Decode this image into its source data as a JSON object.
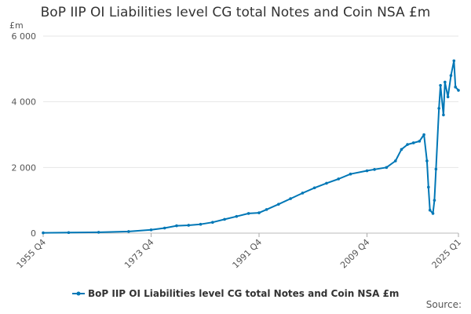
{
  "chart_data": {
    "type": "line",
    "title": "BoP IIP OI Liabilities level CG total Notes and Coin NSA £m",
    "ylabel": "£m",
    "xlabel": "",
    "ylim": [
      0,
      6000
    ],
    "yticks": [
      {
        "value": 0,
        "label": "0"
      },
      {
        "value": 2000,
        "label": "2 000"
      },
      {
        "value": 4000,
        "label": "4 000"
      },
      {
        "value": 6000,
        "label": "6 000"
      }
    ],
    "xlim": [
      1955.75,
      2025.0
    ],
    "xticks": [
      {
        "value": 1955.75,
        "label": "1955 Q4"
      },
      {
        "value": 1973.75,
        "label": "1973 Q4"
      },
      {
        "value": 1991.75,
        "label": "1991 Q4"
      },
      {
        "value": 2009.75,
        "label": "2009 Q4"
      },
      {
        "value": 2025.0,
        "label": "2025 Q1"
      }
    ],
    "series": [
      {
        "name": "BoP IIP OI Liabilities level CG total Notes and Coin NSA £m",
        "color": "#0077b6",
        "points": [
          [
            1955.75,
            10
          ],
          [
            1960,
            18
          ],
          [
            1965,
            26
          ],
          [
            1970,
            50
          ],
          [
            1973.75,
            100
          ],
          [
            1976,
            155
          ],
          [
            1978,
            225
          ],
          [
            1980,
            240
          ],
          [
            1982,
            270
          ],
          [
            1984,
            330
          ],
          [
            1986,
            420
          ],
          [
            1988,
            510
          ],
          [
            1990,
            600
          ],
          [
            1991.75,
            620
          ],
          [
            1993,
            720
          ],
          [
            1995,
            880
          ],
          [
            1997,
            1050
          ],
          [
            1999,
            1220
          ],
          [
            2001,
            1380
          ],
          [
            2003,
            1520
          ],
          [
            2005,
            1650
          ],
          [
            2007,
            1800
          ],
          [
            2009.75,
            1900
          ],
          [
            2011,
            1940
          ],
          [
            2013,
            2000
          ],
          [
            2014.5,
            2200
          ],
          [
            2015.5,
            2550
          ],
          [
            2016.5,
            2700
          ],
          [
            2017.5,
            2750
          ],
          [
            2018.5,
            2800
          ],
          [
            2019.25,
            3000
          ],
          [
            2019.75,
            2200
          ],
          [
            2020.0,
            1400
          ],
          [
            2020.25,
            700
          ],
          [
            2020.75,
            600
          ],
          [
            2021.0,
            1000
          ],
          [
            2021.25,
            1950
          ],
          [
            2021.75,
            3800
          ],
          [
            2022.0,
            4500
          ],
          [
            2022.5,
            3600
          ],
          [
            2022.75,
            4600
          ],
          [
            2023.25,
            4150
          ],
          [
            2023.75,
            4800
          ],
          [
            2024.25,
            5250
          ],
          [
            2024.5,
            4450
          ],
          [
            2025.0,
            4350
          ]
        ]
      }
    ],
    "legend": "bottom-center"
  },
  "source_label": "Source:"
}
